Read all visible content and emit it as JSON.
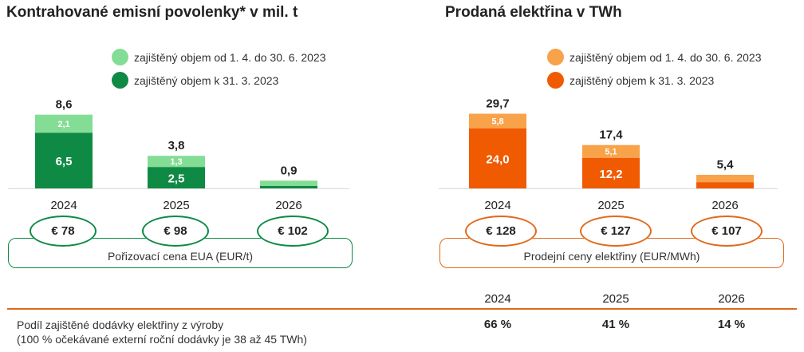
{
  "chart_data": [
    {
      "type": "bar",
      "stacked": true,
      "title": "Kontrahované emisní povolenky* v mil. t",
      "categories": [
        "2024",
        "2025",
        "2026"
      ],
      "series": [
        {
          "name": "zajištěný objem k 31. 3. 2023",
          "values": [
            6.5,
            2.5,
            0.3
          ],
          "labels": [
            "6,5",
            "2,5",
            ""
          ],
          "color": "#0e8a45"
        },
        {
          "name": "zajištěný objem od 1. 4. do 30. 6. 2023",
          "values": [
            2.1,
            1.3,
            0.6
          ],
          "labels": [
            "2,1",
            "1,3",
            ""
          ],
          "color": "#84dd95"
        }
      ],
      "totals": [
        "8,6",
        "3,8",
        "0,9"
      ],
      "ylim": [
        0,
        9.5
      ],
      "prices": [
        "€ 78",
        "€ 98",
        "€ 102"
      ],
      "price_caption": "Pořizovací cena EUA (EUR/t)",
      "accent": "#0e8a45"
    },
    {
      "type": "bar",
      "stacked": true,
      "title": "Prodaná elektřina v TWh",
      "categories": [
        "2024",
        "2025",
        "2026"
      ],
      "series": [
        {
          "name": "zajištěný objem k 31. 3. 2023",
          "values": [
            24.0,
            12.2,
            2.5
          ],
          "labels": [
            "24,0",
            "12,2",
            ""
          ],
          "color": "#f05a00"
        },
        {
          "name": "zajištěný objem od 1. 4. do 30. 6. 2023",
          "values": [
            5.8,
            5.1,
            2.9
          ],
          "labels": [
            "5,8",
            "5,1",
            ""
          ],
          "color": "#f8a24a"
        }
      ],
      "totals": [
        "29,7",
        "17,4",
        "5,4"
      ],
      "ylim": [
        0,
        32.5
      ],
      "prices": [
        "€ 128",
        "€ 127",
        "€ 107"
      ],
      "price_caption": "Prodejní ceny elektřiny (EUR/MWh)",
      "accent": "#e06a1b"
    },
    {
      "type": "table",
      "row_label": "Podíl zajištěné dodávky elektřiny z výroby",
      "row_note": "(100 % očekávané externí roční dodávky je 38 až 45 TWh)",
      "columns": [
        "2024",
        "2025",
        "2026"
      ],
      "values": [
        "66 %",
        "41 %",
        "14 %"
      ]
    }
  ]
}
